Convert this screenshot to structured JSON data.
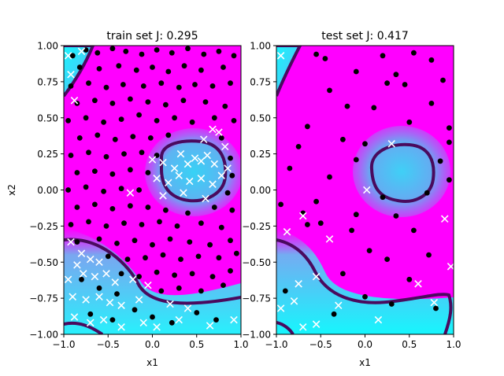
{
  "chart_data": [
    {
      "type": "scatter",
      "title": "train set J: 0.295",
      "xlabel": "x1",
      "ylabel": "x2",
      "xlim": [
        -1.0,
        1.0
      ],
      "ylim": [
        -1.0,
        1.0
      ],
      "xticks": [
        "−1.0",
        "−0.5",
        "0.0",
        "0.5",
        "1.0"
      ],
      "yticks": [
        "1.00",
        "0.75",
        "0.50",
        "0.25",
        "0.00",
        "−0.25",
        "−0.50",
        "−0.75",
        "−1.00"
      ],
      "background": "decision-function heatmap, magenta (class 0) to cyan (class 1), dark purple decision contour",
      "series": [
        {
          "marker": "circle",
          "color": "#000000",
          "points": [
            [
              -0.9,
              0.93
            ],
            [
              -0.75,
              0.97
            ],
            [
              -0.62,
              0.95
            ],
            [
              -0.45,
              0.98
            ],
            [
              -0.3,
              0.96
            ],
            [
              -0.12,
              0.94
            ],
            [
              0.05,
              0.97
            ],
            [
              0.22,
              0.95
            ],
            [
              0.4,
              0.98
            ],
            [
              0.58,
              0.94
            ],
            [
              0.75,
              0.96
            ],
            [
              0.92,
              0.93
            ],
            [
              -0.82,
              0.85
            ],
            [
              -0.6,
              0.84
            ],
            [
              -0.38,
              0.86
            ],
            [
              -0.18,
              0.83
            ],
            [
              0.0,
              0.85
            ],
            [
              0.18,
              0.82
            ],
            [
              0.36,
              0.86
            ],
            [
              0.55,
              0.83
            ],
            [
              0.8,
              0.85
            ],
            [
              -0.92,
              0.72
            ],
            [
              -0.72,
              0.74
            ],
            [
              -0.52,
              0.71
            ],
            [
              -0.33,
              0.73
            ],
            [
              -0.1,
              0.72
            ],
            [
              0.1,
              0.74
            ],
            [
              0.3,
              0.71
            ],
            [
              0.48,
              0.73
            ],
            [
              0.68,
              0.72
            ],
            [
              0.88,
              0.74
            ],
            [
              -0.85,
              0.6
            ],
            [
              -0.65,
              0.62
            ],
            [
              -0.45,
              0.6
            ],
            [
              -0.25,
              0.63
            ],
            [
              -0.05,
              0.61
            ],
            [
              0.15,
              0.59
            ],
            [
              0.35,
              0.62
            ],
            [
              0.6,
              0.61
            ],
            [
              0.82,
              0.58
            ],
            [
              -0.95,
              0.48
            ],
            [
              -0.75,
              0.5
            ],
            [
              -0.55,
              0.47
            ],
            [
              -0.35,
              0.49
            ],
            [
              -0.15,
              0.52
            ],
            [
              0.05,
              0.48
            ],
            [
              0.25,
              0.5
            ],
            [
              0.45,
              0.47
            ],
            [
              0.7,
              0.5
            ],
            [
              0.92,
              0.48
            ],
            [
              -0.82,
              0.36
            ],
            [
              -0.62,
              0.38
            ],
            [
              -0.42,
              0.35
            ],
            [
              -0.22,
              0.37
            ],
            [
              -0.02,
              0.36
            ],
            [
              0.18,
              0.38
            ],
            [
              0.78,
              0.36
            ],
            [
              -0.92,
              0.24
            ],
            [
              -0.72,
              0.26
            ],
            [
              -0.52,
              0.23
            ],
            [
              -0.32,
              0.25
            ],
            [
              -0.12,
              0.26
            ],
            [
              0.05,
              0.24
            ],
            [
              0.88,
              0.22
            ],
            [
              -0.85,
              0.12
            ],
            [
              -0.65,
              0.13
            ],
            [
              -0.45,
              0.11
            ],
            [
              -0.25,
              0.14
            ],
            [
              -0.05,
              0.12
            ],
            [
              0.9,
              0.1
            ],
            [
              -0.95,
              0.0
            ],
            [
              -0.75,
              0.02
            ],
            [
              -0.55,
              -0.01
            ],
            [
              -0.35,
              0.01
            ],
            [
              -0.15,
              0.0
            ],
            [
              0.85,
              -0.02
            ],
            [
              -0.85,
              -0.12
            ],
            [
              -0.65,
              -0.1
            ],
            [
              -0.45,
              -0.13
            ],
            [
              -0.25,
              -0.11
            ],
            [
              -0.05,
              -0.12
            ],
            [
              0.15,
              -0.14
            ],
            [
              0.4,
              -0.16
            ],
            [
              0.7,
              -0.12
            ],
            [
              0.9,
              -0.14
            ],
            [
              -0.92,
              -0.24
            ],
            [
              -0.72,
              -0.22
            ],
            [
              -0.52,
              -0.25
            ],
            [
              -0.32,
              -0.23
            ],
            [
              -0.12,
              -0.24
            ],
            [
              0.08,
              -0.22
            ],
            [
              0.28,
              -0.25
            ],
            [
              0.55,
              -0.23
            ],
            [
              0.78,
              -0.26
            ],
            [
              -0.85,
              -0.36
            ],
            [
              -0.6,
              -0.34
            ],
            [
              -0.4,
              -0.37
            ],
            [
              -0.2,
              -0.35
            ],
            [
              0.0,
              -0.38
            ],
            [
              0.2,
              -0.34
            ],
            [
              0.42,
              -0.36
            ],
            [
              0.65,
              -0.38
            ],
            [
              0.88,
              -0.35
            ],
            [
              -0.5,
              -0.46
            ],
            [
              -0.28,
              -0.48
            ],
            [
              -0.08,
              -0.47
            ],
            [
              0.12,
              -0.45
            ],
            [
              0.32,
              -0.48
            ],
            [
              0.52,
              -0.46
            ],
            [
              0.75,
              -0.47
            ],
            [
              0.95,
              -0.44
            ],
            [
              -0.35,
              -0.58
            ],
            [
              -0.15,
              -0.6
            ],
            [
              0.05,
              -0.57
            ],
            [
              0.25,
              -0.59
            ],
            [
              0.45,
              -0.58
            ],
            [
              0.68,
              -0.6
            ],
            [
              0.88,
              -0.56
            ],
            [
              -0.8,
              -0.62
            ],
            [
              -0.6,
              -0.68
            ],
            [
              -0.4,
              -0.72
            ],
            [
              0.1,
              -0.7
            ],
            [
              0.3,
              -0.68
            ],
            [
              0.55,
              -0.7
            ],
            [
              0.8,
              -0.66
            ],
            [
              -0.7,
              -0.86
            ],
            [
              -0.45,
              -0.9
            ],
            [
              -0.2,
              -0.83
            ],
            [
              0.0,
              -0.88
            ],
            [
              0.22,
              -0.92
            ],
            [
              0.5,
              -0.85
            ],
            [
              0.72,
              -0.9
            ]
          ]
        },
        {
          "marker": "x",
          "color": "#ffffff",
          "points": [
            [
              -0.95,
              0.93
            ],
            [
              -0.8,
              0.96
            ],
            [
              -0.92,
              0.8
            ],
            [
              -0.88,
              0.62
            ],
            [
              0.0,
              0.21
            ],
            [
              0.12,
              0.19
            ],
            [
              0.25,
              0.15
            ],
            [
              0.32,
              0.25
            ],
            [
              0.4,
              0.18
            ],
            [
              0.48,
              0.22
            ],
            [
              0.55,
              0.2
            ],
            [
              0.62,
              0.24
            ],
            [
              0.7,
              0.18
            ],
            [
              0.85,
              0.15
            ],
            [
              0.05,
              0.08
            ],
            [
              0.18,
              0.05
            ],
            [
              0.3,
              0.1
            ],
            [
              0.42,
              0.06
            ],
            [
              0.55,
              0.08
            ],
            [
              0.68,
              0.04
            ],
            [
              0.78,
              0.1
            ],
            [
              -0.25,
              -0.02
            ],
            [
              0.12,
              -0.04
            ],
            [
              0.35,
              -0.02
            ],
            [
              0.6,
              -0.06
            ],
            [
              0.58,
              0.35
            ],
            [
              0.68,
              0.42
            ],
            [
              0.75,
              0.4
            ],
            [
              0.82,
              0.3
            ],
            [
              -0.92,
              -0.36
            ],
            [
              -0.8,
              -0.44
            ],
            [
              -0.7,
              -0.48
            ],
            [
              -0.6,
              -0.5
            ],
            [
              -0.85,
              -0.52
            ],
            [
              -0.95,
              -0.62
            ],
            [
              -0.78,
              -0.58
            ],
            [
              -0.65,
              -0.6
            ],
            [
              -0.52,
              -0.58
            ],
            [
              -0.42,
              -0.64
            ],
            [
              -0.22,
              -0.62
            ],
            [
              -0.05,
              -0.66
            ],
            [
              -0.9,
              -0.74
            ],
            [
              -0.75,
              -0.76
            ],
            [
              -0.6,
              -0.74
            ],
            [
              -0.48,
              -0.78
            ],
            [
              -0.35,
              -0.8
            ],
            [
              -0.15,
              -0.76
            ],
            [
              0.2,
              -0.79
            ],
            [
              0.4,
              -0.82
            ],
            [
              -0.88,
              -0.88
            ],
            [
              -0.7,
              -0.92
            ],
            [
              -0.55,
              -0.9
            ],
            [
              -0.35,
              -0.95
            ],
            [
              -0.1,
              -0.92
            ],
            [
              0.05,
              -0.95
            ],
            [
              0.3,
              -0.9
            ],
            [
              0.65,
              -0.94
            ],
            [
              0.92,
              -0.9
            ]
          ]
        }
      ]
    },
    {
      "type": "scatter",
      "title": "test set J: 0.417",
      "xlabel": "x1",
      "ylabel": "",
      "xlim": [
        -1.0,
        1.0
      ],
      "ylim": [
        -1.0,
        1.0
      ],
      "xticks": [
        "−1.0",
        "−0.5",
        "0.0",
        "0.5",
        "1.0"
      ],
      "yticks": [
        "1.00",
        "0.75",
        "0.50",
        "0.25",
        "0.00",
        "−0.25",
        "−0.50",
        "−0.75",
        "−1.00"
      ],
      "background": "decision-function heatmap, magenta (class 0) to cyan (class 1), dark purple decision contour",
      "series": [
        {
          "marker": "circle",
          "color": "#000000",
          "points": [
            [
              -0.55,
              0.94
            ],
            [
              -0.45,
              0.91
            ],
            [
              0.2,
              0.93
            ],
            [
              0.55,
              0.95
            ],
            [
              0.75,
              0.9
            ],
            [
              -0.1,
              0.82
            ],
            [
              0.35,
              0.8
            ],
            [
              0.88,
              0.76
            ],
            [
              -0.4,
              0.69
            ],
            [
              0.45,
              0.73
            ],
            [
              0.25,
              0.74
            ],
            [
              -0.2,
              0.58
            ],
            [
              0.1,
              0.57
            ],
            [
              0.75,
              0.6
            ],
            [
              -0.65,
              0.44
            ],
            [
              0.5,
              0.47
            ],
            [
              0.95,
              0.43
            ],
            [
              -0.75,
              0.3
            ],
            [
              -0.25,
              0.35
            ],
            [
              0.0,
              0.32
            ],
            [
              0.95,
              0.33
            ],
            [
              -0.1,
              0.21
            ],
            [
              0.85,
              0.2
            ],
            [
              -0.85,
              0.15
            ],
            [
              -0.4,
              0.09
            ],
            [
              0.95,
              0.07
            ],
            [
              -0.55,
              -0.08
            ],
            [
              0.2,
              -0.05
            ],
            [
              0.7,
              -0.02
            ],
            [
              -0.95,
              -0.1
            ],
            [
              -0.7,
              -0.16
            ],
            [
              -0.1,
              -0.17
            ],
            [
              0.35,
              -0.18
            ],
            [
              -0.65,
              -0.24
            ],
            [
              -0.5,
              -0.23
            ],
            [
              -0.15,
              -0.28
            ],
            [
              0.55,
              -0.28
            ],
            [
              0.05,
              -0.42
            ],
            [
              0.25,
              -0.48
            ],
            [
              0.72,
              -0.45
            ],
            [
              -0.25,
              -0.58
            ],
            [
              0.5,
              -0.62
            ],
            [
              -0.9,
              -0.7
            ],
            [
              0.0,
              -0.74
            ],
            [
              0.3,
              -0.79
            ],
            [
              -0.35,
              -0.86
            ],
            [
              0.8,
              -0.82
            ]
          ]
        },
        {
          "marker": "x",
          "color": "#ffffff",
          "points": [
            [
              -0.95,
              0.93
            ],
            [
              0.3,
              0.32
            ],
            [
              0.02,
              0.0
            ],
            [
              -0.7,
              -0.18
            ],
            [
              -0.88,
              -0.29
            ],
            [
              -0.4,
              -0.34
            ],
            [
              0.9,
              -0.2
            ],
            [
              0.97,
              -0.53
            ],
            [
              -0.55,
              -0.6
            ],
            [
              -0.75,
              -0.65
            ],
            [
              0.6,
              -0.65
            ],
            [
              -0.8,
              -0.77
            ],
            [
              -0.3,
              -0.8
            ],
            [
              0.78,
              -0.78
            ],
            [
              -0.95,
              -0.82
            ],
            [
              -0.55,
              -0.93
            ],
            [
              -0.7,
              -0.95
            ],
            [
              0.15,
              -0.9
            ]
          ]
        }
      ]
    }
  ]
}
